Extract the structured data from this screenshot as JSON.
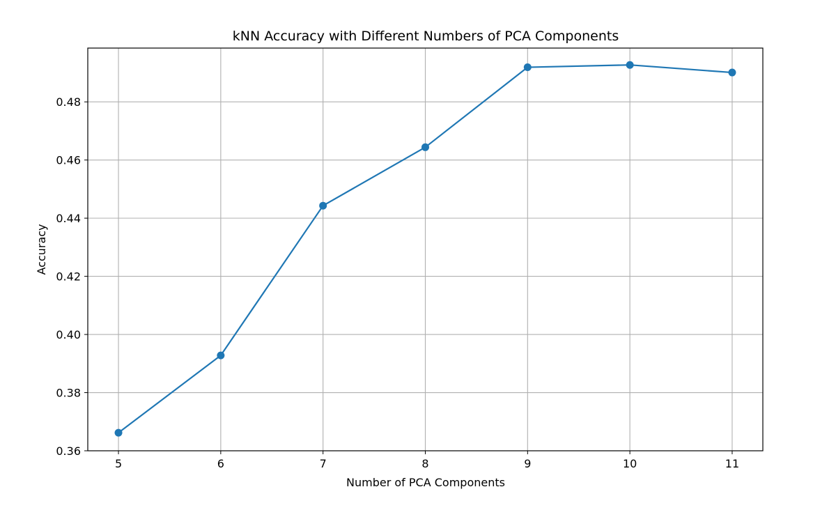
{
  "chart_data": {
    "type": "line",
    "title": "kNN Accuracy with Different Numbers of PCA Components",
    "xlabel": "Number of PCA Components",
    "ylabel": "Accuracy",
    "x": [
      5,
      6,
      7,
      8,
      9,
      10,
      11
    ],
    "series": [
      {
        "values": [
          0.3662,
          0.3928,
          0.4443,
          0.4644,
          0.4919,
          0.4927,
          0.4901
        ]
      }
    ],
    "xlim": [
      4.7,
      11.3
    ],
    "ylim": [
      0.36,
      0.4985
    ],
    "xticks": [
      "5",
      "6",
      "7",
      "8",
      "9",
      "10",
      "11"
    ],
    "yticks": [
      "0.36",
      "0.38",
      "0.40",
      "0.42",
      "0.44",
      "0.46",
      "0.48"
    ],
    "grid": true,
    "legend": "none",
    "colors": {
      "line": "#1f77b4",
      "marker": "#1f77b4",
      "grid": "#b0b0b0",
      "axes": "#000000"
    }
  }
}
